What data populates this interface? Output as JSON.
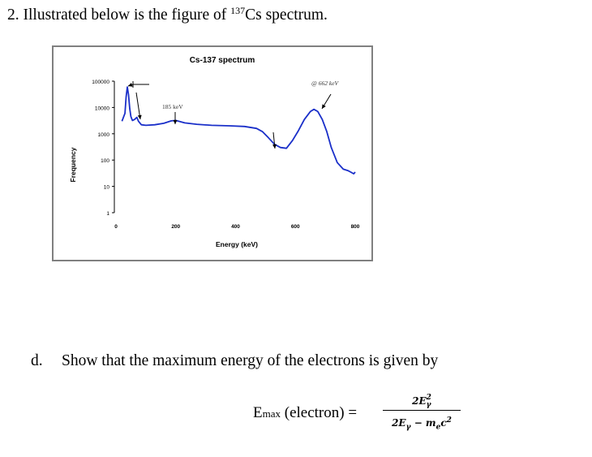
{
  "question": {
    "number": "2.",
    "text_before": "Illustrated below is the figure of ",
    "isotope_mass": "137",
    "text_after": "Cs spectrum."
  },
  "chart_data": {
    "type": "line",
    "title": "Cs-137 spectrum",
    "xlabel": "Energy (keV)",
    "ylabel": "Frequency",
    "xlim": [
      0,
      800
    ],
    "ylim": [
      1,
      100000
    ],
    "y_scale": "log",
    "x_ticks": [
      "0",
      "200",
      "400",
      "600",
      "800"
    ],
    "y_ticks": [
      "1",
      "10",
      "100",
      "1000",
      "10000",
      "100000"
    ],
    "grid": false,
    "series": [
      {
        "color": "#1a2fc9",
        "x": [
          20,
          30,
          34,
          38,
          42,
          46,
          50,
          55,
          62,
          70,
          75,
          85,
          100,
          130,
          160,
          185,
          200,
          230,
          270,
          320,
          380,
          430,
          470,
          490,
          510,
          530,
          550,
          570,
          590,
          610,
          630,
          650,
          662,
          675,
          690,
          705,
          720,
          740,
          760,
          775,
          785,
          795,
          800
        ],
        "y": [
          3000,
          6000,
          25000,
          60000,
          30000,
          9000,
          4500,
          3200,
          3500,
          4200,
          3000,
          2200,
          2100,
          2200,
          2500,
          3100,
          3200,
          2600,
          2300,
          2100,
          2000,
          1900,
          1600,
          1200,
          700,
          400,
          300,
          280,
          550,
          1300,
          3500,
          7000,
          8500,
          7000,
          3500,
          1200,
          300,
          80,
          45,
          40,
          35,
          30,
          35
        ]
      }
    ],
    "annotations": [
      "185 keV",
      "@ 662 keV"
    ]
  },
  "part_d": {
    "label": "d.",
    "text": "Show that the maximum energy of the electrons is given by"
  },
  "formula": {
    "lhs_main": "E",
    "lhs_sub": "max",
    "lhs_rest": " (electron) =",
    "num_coeff": "2E",
    "num_sub": "γ",
    "num_sup": "2",
    "den_a": "2E",
    "den_a_sub": "γ",
    "den_minus": " − m",
    "den_b_sub": "e",
    "den_c": "c",
    "den_c_sup": "2"
  }
}
